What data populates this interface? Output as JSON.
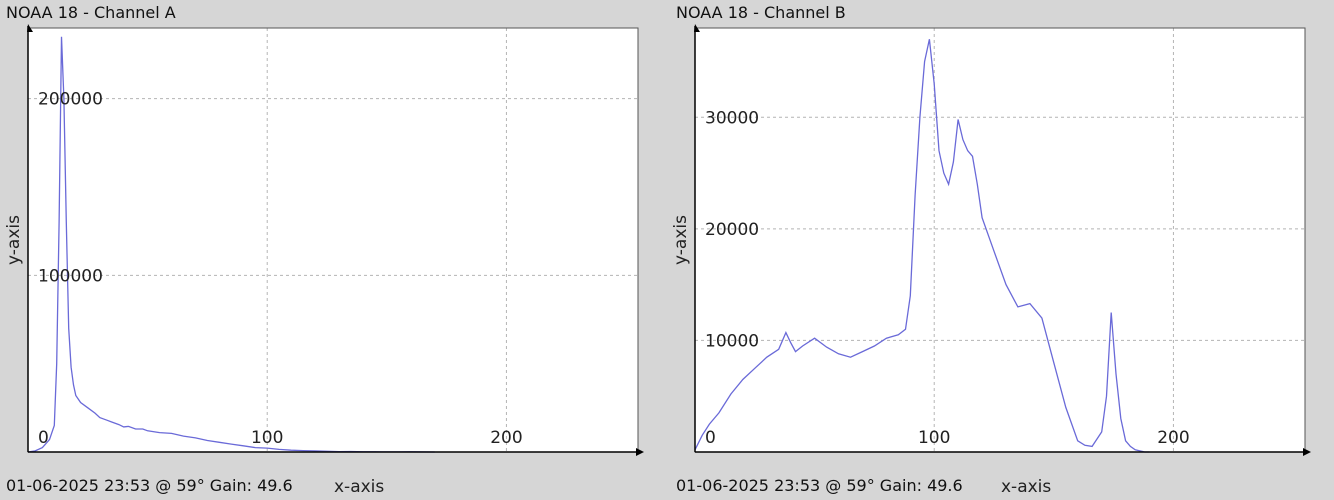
{
  "chart_data": [
    {
      "type": "line",
      "title": "NOAA 18 - Channel A",
      "footer": "01-06-2025 23:53 @ 59° Gain: 49.6",
      "xlabel": "x-axis",
      "ylabel": "y-axis",
      "xlim": [
        0,
        255
      ],
      "ylim": [
        0,
        240000
      ],
      "grid": true,
      "color": "#6a6ad8",
      "x_ticks": [
        0,
        100,
        200
      ],
      "x_tick_labels": [
        "0",
        "100",
        "200"
      ],
      "y_ticks": [
        100000,
        200000
      ],
      "y_tick_labels": [
        "100000",
        "200000"
      ],
      "series": [
        {
          "x": [
            0,
            3,
            6,
            9,
            11,
            12,
            13,
            14,
            15,
            16,
            17,
            18,
            19,
            20,
            22,
            25,
            28,
            30,
            33,
            35,
            38,
            40,
            42,
            45,
            48,
            50,
            55,
            60,
            65,
            70,
            75,
            80,
            85,
            90,
            95,
            100,
            105,
            110,
            115,
            120,
            125,
            130,
            135,
            140,
            145,
            150,
            155,
            160,
            170
          ],
          "y": [
            0,
            600,
            2500,
            7000,
            15000,
            50000,
            130000,
            235000,
            200000,
            130000,
            70000,
            48000,
            38000,
            32000,
            28000,
            25000,
            22000,
            19500,
            18000,
            17000,
            15500,
            14200,
            14500,
            13000,
            13000,
            12000,
            11000,
            10500,
            9000,
            8000,
            6500,
            5500,
            4500,
            3500,
            2500,
            2200,
            1500,
            1000,
            800,
            600,
            400,
            200,
            300,
            100,
            100,
            50,
            50,
            100,
            0
          ]
        }
      ]
    },
    {
      "type": "line",
      "title": "NOAA 18 - Channel B",
      "footer": "01-06-2025 23:53 @ 59° Gain: 49.6",
      "xlabel": "x-axis",
      "ylabel": "y-axis",
      "xlim": [
        0,
        255
      ],
      "ylim": [
        0,
        38000
      ],
      "grid": true,
      "color": "#6a6ad8",
      "x_ticks": [
        0,
        100,
        200
      ],
      "x_tick_labels": [
        "0",
        "100",
        "200"
      ],
      "y_ticks": [
        10000,
        20000,
        30000
      ],
      "y_tick_labels": [
        "10000",
        "20000",
        "30000"
      ],
      "series": [
        {
          "x": [
            0,
            3,
            6,
            10,
            15,
            20,
            25,
            30,
            35,
            38,
            40,
            42,
            45,
            50,
            55,
            60,
            65,
            70,
            75,
            80,
            85,
            88,
            90,
            92,
            94,
            96,
            98,
            100,
            102,
            104,
            106,
            108,
            110,
            112,
            114,
            116,
            118,
            120,
            125,
            130,
            135,
            140,
            145,
            150,
            155,
            160,
            163,
            166,
            170,
            172,
            174,
            176,
            178,
            180,
            182,
            184,
            186,
            188,
            190
          ],
          "y": [
            200,
            1500,
            2500,
            3500,
            5200,
            6500,
            7500,
            8500,
            9200,
            10700,
            9800,
            9000,
            9500,
            10200,
            9400,
            8800,
            8500,
            9000,
            9500,
            10200,
            10500,
            11000,
            14000,
            23000,
            30000,
            35000,
            37000,
            33000,
            27000,
            25000,
            24000,
            26000,
            29800,
            28000,
            27000,
            26500,
            24000,
            21000,
            18000,
            15000,
            13000,
            13300,
            12000,
            8000,
            4000,
            1000,
            600,
            500,
            1800,
            5000,
            12500,
            7000,
            3000,
            1000,
            500,
            200,
            100,
            0,
            0
          ]
        }
      ]
    }
  ]
}
